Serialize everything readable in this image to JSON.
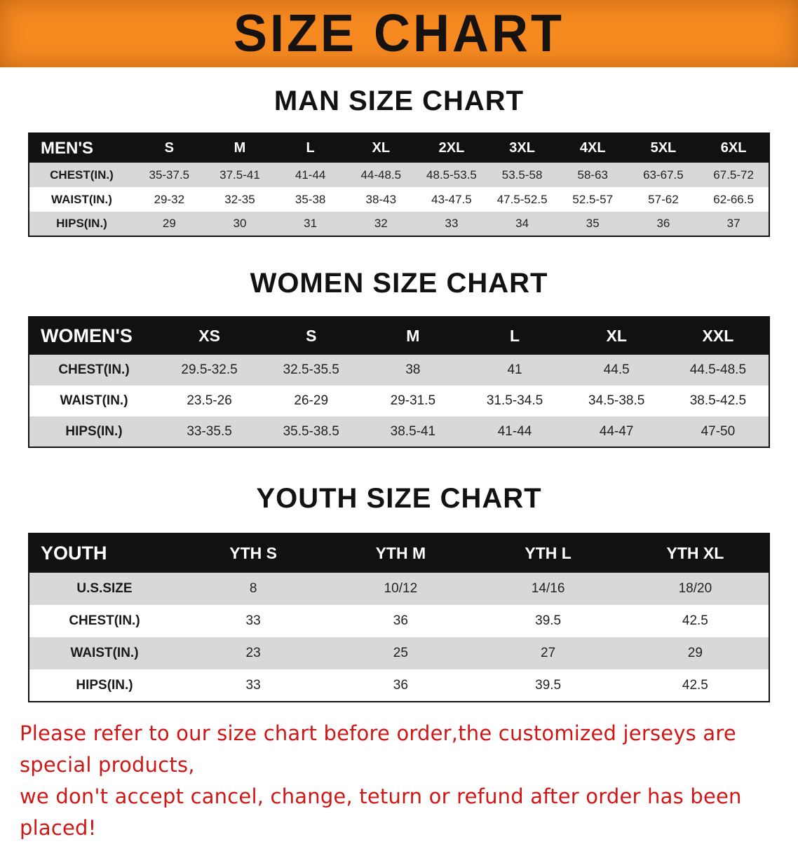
{
  "banner": {
    "title": "SIZE CHART"
  },
  "man": {
    "heading": "MAN SIZE CHART",
    "table": {
      "header": [
        "MEN'S",
        "S",
        "M",
        "L",
        "XL",
        "2XL",
        "3XL",
        "4XL",
        "5XL",
        "6XL"
      ],
      "rows": [
        {
          "label": "CHEST(IN.)",
          "values": [
            "35-37.5",
            "37.5-41",
            "41-44",
            "44-48.5",
            "48.5-53.5",
            "53.5-58",
            "58-63",
            "63-67.5",
            "67.5-72"
          ]
        },
        {
          "label": "WAIST(IN.)",
          "values": [
            "29-32",
            "32-35",
            "35-38",
            "38-43",
            "43-47.5",
            "47.5-52.5",
            "52.5-57",
            "57-62",
            "62-66.5"
          ]
        },
        {
          "label": "HIPS(IN.)",
          "values": [
            "29",
            "30",
            "31",
            "32",
            "33",
            "34",
            "35",
            "36",
            "37"
          ]
        }
      ]
    }
  },
  "women": {
    "heading": "WOMEN SIZE CHART",
    "table": {
      "header": [
        "WOMEN'S",
        "XS",
        "S",
        "M",
        "L",
        "XL",
        "XXL"
      ],
      "rows": [
        {
          "label": "CHEST(IN.)",
          "values": [
            "29.5-32.5",
            "32.5-35.5",
            "38",
            "41",
            "44.5",
            "44.5-48.5"
          ]
        },
        {
          "label": "WAIST(IN.)",
          "values": [
            "23.5-26",
            "26-29",
            "29-31.5",
            "31.5-34.5",
            "34.5-38.5",
            "38.5-42.5"
          ]
        },
        {
          "label": "HIPS(IN.)",
          "values": [
            "33-35.5",
            "35.5-38.5",
            "38.5-41",
            "41-44",
            "44-47",
            "47-50"
          ]
        }
      ]
    }
  },
  "youth": {
    "heading": "YOUTH SIZE CHART",
    "table": {
      "header": [
        "YOUTH",
        "YTH S",
        "YTH M",
        "YTH L",
        "YTH XL"
      ],
      "rows": [
        {
          "label": "U.S.SIZE",
          "values": [
            "8",
            "10/12",
            "14/16",
            "18/20"
          ]
        },
        {
          "label": "CHEST(IN.)",
          "values": [
            "33",
            "36",
            "39.5",
            "42.5"
          ]
        },
        {
          "label": "WAIST(IN.)",
          "values": [
            "23",
            "25",
            "27",
            "29"
          ]
        },
        {
          "label": "HIPS(IN.)",
          "values": [
            "33",
            "36",
            "39.5",
            "42.5"
          ]
        }
      ]
    }
  },
  "disclaimer": {
    "line1": "Please refer to our size chart before order,the customized jerseys are special products,",
    "line2": "we don't accept cancel, change, teturn or refund after order has been placed!"
  },
  "colors": {
    "banner_bg": "#F68920",
    "header_bg": "#111111",
    "row_alt_bg": "#d8d8d8",
    "disclaimer_red": "#d01716"
  }
}
